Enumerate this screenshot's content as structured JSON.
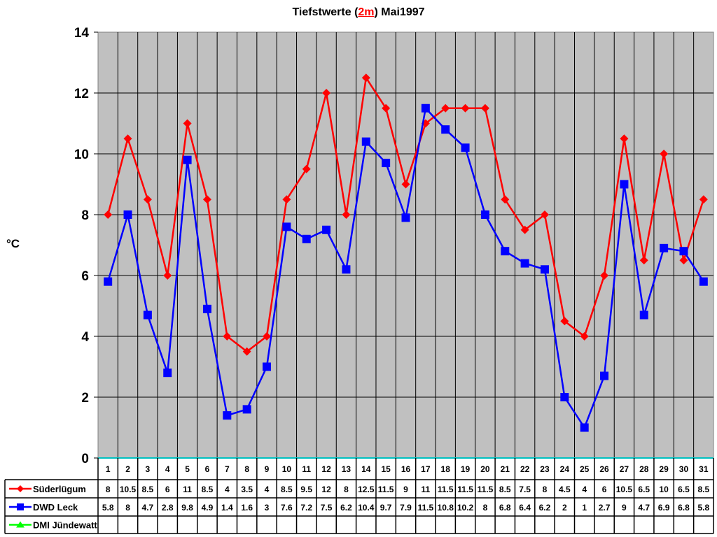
{
  "title": {
    "prefix": "Tiefstwerte (",
    "highlight": "2m",
    "suffix": ") Mai1997"
  },
  "colors": {
    "plot_bg": "#c0c0c0",
    "grid": "#000000",
    "axis_zero": "#00c0c0",
    "suderlugum": "#ff0000",
    "dwd_leck": "#0000ff",
    "dmi_jundewatt": "#00ff00"
  },
  "chart_data": {
    "type": "line",
    "title": "Tiefstwerte (2m) Mai1997",
    "xlabel": "",
    "ylabel": "°C",
    "ylim": [
      0,
      14
    ],
    "yticks": [
      0,
      2,
      4,
      6,
      8,
      10,
      12,
      14
    ],
    "grid": true,
    "legend_position": "data-table-left",
    "categories": [
      "1",
      "2",
      "3",
      "4",
      "5",
      "6",
      "7",
      "8",
      "9",
      "10",
      "11",
      "12",
      "13",
      "14",
      "15",
      "16",
      "17",
      "18",
      "19",
      "20",
      "21",
      "22",
      "23",
      "24",
      "25",
      "26",
      "27",
      "28",
      "29",
      "30",
      "31"
    ],
    "series": [
      {
        "name": "Süderlügum",
        "color": "#ff0000",
        "marker": "diamond",
        "values": [
          8,
          10.5,
          8.5,
          6,
          11,
          8.5,
          4,
          3.5,
          4,
          8.5,
          9.5,
          12,
          8,
          12.5,
          11.5,
          9,
          11,
          11.5,
          11.5,
          11.5,
          8.5,
          7.5,
          8,
          4.5,
          4,
          6,
          10.5,
          6.5,
          10,
          6.5,
          8.5
        ]
      },
      {
        "name": "DWD Leck",
        "color": "#0000ff",
        "marker": "square",
        "values": [
          5.8,
          8,
          4.7,
          2.8,
          9.8,
          4.9,
          1.4,
          1.6,
          3,
          7.6,
          7.2,
          7.5,
          6.2,
          10.4,
          9.7,
          7.9,
          11.5,
          10.8,
          10.2,
          8,
          6.8,
          6.4,
          6.2,
          2,
          1,
          2.7,
          9,
          4.7,
          6.9,
          6.8,
          5.8
        ]
      },
      {
        "name": "DMI Jündewatt",
        "color": "#00ff00",
        "marker": "triangle",
        "values": [
          null,
          null,
          null,
          null,
          null,
          null,
          null,
          null,
          null,
          null,
          null,
          null,
          null,
          null,
          null,
          null,
          null,
          null,
          null,
          null,
          null,
          null,
          null,
          null,
          null,
          null,
          null,
          null,
          null,
          null,
          null
        ]
      }
    ]
  },
  "table": {
    "rows": [
      {
        "label": "Süderlügum",
        "cells": [
          "8",
          "10.5",
          "8.5",
          "6",
          "11",
          "8.5",
          "4",
          "3.5",
          "4",
          "8.5",
          "9.5",
          "12",
          "8",
          "12.5",
          "11.5",
          "9",
          "11",
          "11.5",
          "11.5",
          "11.5",
          "8.5",
          "7.5",
          "8",
          "4.5",
          "4",
          "6",
          "10.5",
          "6.5",
          "10",
          "6.5",
          "8.5"
        ]
      },
      {
        "label": "DWD Leck",
        "cells": [
          "5.8",
          "8",
          "4.7",
          "2.8",
          "9.8",
          "4.9",
          "1.4",
          "1.6",
          "3",
          "7.6",
          "7.2",
          "7.5",
          "6.2",
          "10.4",
          "9.7",
          "7.9",
          "11.5",
          "10.8",
          "10.2",
          "8",
          "6.8",
          "6.4",
          "6.2",
          "2",
          "1",
          "2.7",
          "9",
          "4.7",
          "6.9",
          "6.8",
          "5.8"
        ]
      },
      {
        "label": "DMI Jündewatt",
        "cells": [
          "",
          "",
          "",
          "",
          "",
          "",
          "",
          "",
          "",
          "",
          "",
          "",
          "",
          "",
          "",
          "",
          "",
          "",
          "",
          "",
          "",
          "",
          "",
          "",
          "",
          "",
          "",
          "",
          "",
          "",
          ""
        ]
      }
    ]
  }
}
